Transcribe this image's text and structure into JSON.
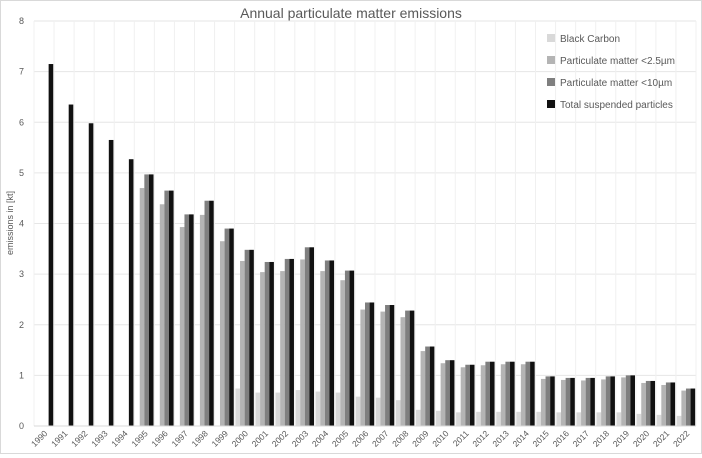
{
  "chart_data": {
    "type": "bar",
    "title": "Annual particulate matter emissions",
    "xlabel": "",
    "ylabel": "emissions in [kt]",
    "ylim": [
      0,
      8
    ],
    "yticks": [
      0,
      1,
      2,
      3,
      4,
      5,
      6,
      7,
      8
    ],
    "grid": true,
    "legend_position": "top-right",
    "categories": [
      "1990",
      "1991",
      "1992",
      "1993",
      "1994",
      "1995",
      "1996",
      "1997",
      "1998",
      "1999",
      "2000",
      "2001",
      "2002",
      "2003",
      "2004",
      "2005",
      "2006",
      "2007",
      "2008",
      "2009",
      "2010",
      "2011",
      "2012",
      "2013",
      "2014",
      "2015",
      "2016",
      "2017",
      "2018",
      "2019",
      "2020",
      "2021",
      "2022"
    ],
    "series": [
      {
        "name": "Black Carbon",
        "color": "#d9d9d9",
        "values": [
          null,
          null,
          null,
          null,
          null,
          null,
          null,
          null,
          null,
          null,
          0.74,
          0.66,
          0.66,
          0.71,
          0.68,
          0.66,
          0.58,
          0.56,
          0.51,
          0.32,
          0.3,
          0.27,
          0.28,
          0.28,
          0.28,
          0.28,
          0.27,
          0.27,
          0.27,
          0.27,
          0.24,
          0.22,
          0.2
        ]
      },
      {
        "name": "Particulate matter <2.5µm",
        "color": "#b4b4b4",
        "values": [
          null,
          null,
          null,
          null,
          null,
          4.7,
          4.38,
          3.93,
          4.17,
          3.65,
          3.26,
          3.04,
          3.06,
          3.29,
          3.06,
          2.88,
          2.3,
          2.26,
          2.15,
          1.48,
          1.24,
          1.16,
          1.2,
          1.22,
          1.22,
          0.93,
          0.91,
          0.9,
          0.92,
          0.96,
          0.85,
          0.81,
          0.7
        ]
      },
      {
        "name": "Particulate matter <10µm",
        "color": "#7f7f7f",
        "values": [
          null,
          null,
          null,
          null,
          null,
          4.97,
          4.65,
          4.18,
          4.45,
          3.9,
          3.48,
          3.24,
          3.3,
          3.53,
          3.27,
          3.07,
          2.44,
          2.39,
          2.28,
          1.57,
          1.3,
          1.21,
          1.27,
          1.27,
          1.27,
          0.98,
          0.95,
          0.95,
          0.98,
          1.0,
          0.89,
          0.86,
          0.74
        ]
      },
      {
        "name": "Total suspended particles",
        "color": "#111111",
        "values": [
          7.15,
          6.35,
          5.98,
          5.65,
          5.27,
          4.97,
          4.65,
          4.18,
          4.45,
          3.9,
          3.48,
          3.24,
          3.3,
          3.53,
          3.27,
          3.07,
          2.44,
          2.39,
          2.28,
          1.57,
          1.3,
          1.21,
          1.27,
          1.27,
          1.27,
          0.98,
          0.95,
          0.95,
          0.98,
          1.0,
          0.89,
          0.86,
          0.74
        ]
      }
    ]
  }
}
